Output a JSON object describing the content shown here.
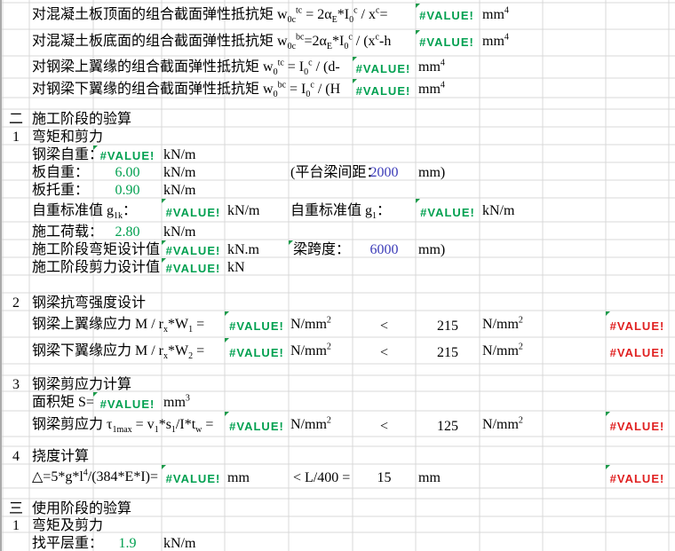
{
  "colors": {
    "error_green": "#00a050",
    "error_red": "#e02020",
    "input_blue": "#3a3ab8",
    "gridline": "#d8d8d8"
  },
  "sheet": {
    "moduli": {
      "top_concrete": {
        "label": [
          [
            "对混凝土板顶面的组合截面弹性抵抗矩 w"
          ],
          [
            "0c",
            "s"
          ],
          [
            "tc",
            "p"
          ],
          [
            " = 2α"
          ],
          [
            "E",
            "s"
          ],
          [
            "*I"
          ],
          [
            "0",
            "s"
          ],
          [
            "c",
            "p"
          ],
          [
            " / x"
          ],
          [
            "c",
            "p"
          ],
          [
            "="
          ]
        ],
        "value": "#VALUE!",
        "unit": [
          [
            "mm"
          ],
          [
            "4",
            "p"
          ]
        ]
      },
      "bottom_concrete": {
        "label": [
          [
            "对混凝土板底面的组合截面弹性抵抗矩 w"
          ],
          [
            "0c",
            "s"
          ],
          [
            "bc",
            "p"
          ],
          [
            "=2α"
          ],
          [
            "E",
            "s"
          ],
          [
            "*I"
          ],
          [
            "0",
            "s"
          ],
          [
            "c",
            "p"
          ],
          [
            " / (x"
          ],
          [
            "c",
            "p"
          ],
          [
            "-h"
          ]
        ],
        "value": "#VALUE!",
        "unit": [
          [
            "mm"
          ],
          [
            "4",
            "p"
          ]
        ]
      },
      "top_flange": {
        "label": [
          [
            "对钢梁上翼缘的组合截面弹性抵抗矩 w"
          ],
          [
            "0",
            "s"
          ],
          [
            "tc",
            "p"
          ],
          [
            " = I"
          ],
          [
            "0",
            "s"
          ],
          [
            "c",
            "p"
          ],
          [
            " / (d-"
          ]
        ],
        "value": "#VALUE!",
        "unit": [
          [
            "mm"
          ],
          [
            "4",
            "p"
          ]
        ]
      },
      "bottom_flange": {
        "label": [
          [
            "对钢梁下翼缘的组合截面弹性抵抗矩 w"
          ],
          [
            "0",
            "s"
          ],
          [
            "bc",
            "p"
          ],
          [
            " = I"
          ],
          [
            "0",
            "s"
          ],
          [
            "c",
            "p"
          ],
          [
            " / (H"
          ]
        ],
        "value": "#VALUE!",
        "unit": [
          [
            "mm"
          ],
          [
            "4",
            "p"
          ]
        ]
      }
    },
    "construction": {
      "section_no": "二",
      "section_title": "施工阶段的验算",
      "item1_no": "1",
      "item1_title": "弯矩和剪力",
      "steel_self_weight": {
        "label": "钢梁自重：",
        "value": "#VALUE!",
        "unit": "kN/m"
      },
      "slab_weight": {
        "label": "板自重：",
        "value": "6.00",
        "unit": "kN/m"
      },
      "platform_spacing": {
        "label": "(平台梁间距：",
        "value": "2000",
        "unit": "mm)"
      },
      "haunch_weight": {
        "label": "板托重：",
        "value": "0.90",
        "unit": "kN/m"
      },
      "g1k": {
        "label": [
          [
            "自重标准值 g"
          ],
          [
            "1k",
            "s"
          ],
          [
            "："
          ]
        ],
        "value": "#VALUE!",
        "unit": "kN/m"
      },
      "g1": {
        "label": [
          [
            "自重标准值 g"
          ],
          [
            "1",
            "s"
          ],
          [
            "："
          ]
        ],
        "value": "#VALUE!",
        "unit": "kN/m"
      },
      "construction_load": {
        "label": "施工荷载：",
        "value": "2.80",
        "unit": "kN/m"
      },
      "moment_design": {
        "label": "施工阶段弯矩设计值",
        "value": "#VALUE!",
        "unit": "kN.m"
      },
      "beam_span": {
        "label": "梁跨度：",
        "value": "6000",
        "unit": "mm)"
      },
      "shear_design": {
        "label": "施工阶段剪力设计值",
        "value": "#VALUE!",
        "unit": "kN"
      },
      "item2_no": "2",
      "item2_title": "钢梁抗弯强度设计",
      "top_flange_stress": {
        "label": [
          [
            "钢梁上翼缘应力 M / r"
          ],
          [
            "x",
            "s"
          ],
          [
            "*W"
          ],
          [
            "1",
            "s"
          ],
          [
            " ="
          ]
        ],
        "value": "#VALUE!",
        "unit": [
          [
            "N/mm"
          ],
          [
            "2",
            "p"
          ]
        ],
        "comparator": "<",
        "limit": "215",
        "limit_unit": [
          [
            "N/mm"
          ],
          [
            "2",
            "p"
          ]
        ],
        "check": "#VALUE!"
      },
      "bottom_flange_stress": {
        "label": [
          [
            "钢梁下翼缘应力 M / r"
          ],
          [
            "x",
            "s"
          ],
          [
            "*W"
          ],
          [
            "2",
            "s"
          ],
          [
            " ="
          ]
        ],
        "value": "#VALUE!",
        "unit": [
          [
            "N/mm"
          ],
          [
            "2",
            "p"
          ]
        ],
        "comparator": "<",
        "limit": "215",
        "limit_unit": [
          [
            "N/mm"
          ],
          [
            "2",
            "p"
          ]
        ],
        "check": "#VALUE!"
      },
      "item3_no": "3",
      "item3_title": "钢梁剪应力计算",
      "area_moment": {
        "label": "面积矩 S=",
        "value": "#VALUE!",
        "unit": [
          [
            "mm"
          ],
          [
            "3",
            "p"
          ]
        ]
      },
      "shear_stress": {
        "label": [
          [
            "钢梁剪应力 τ"
          ],
          [
            "1max",
            "s"
          ],
          [
            " = v"
          ],
          [
            "1",
            "s"
          ],
          [
            "*s"
          ],
          [
            "1",
            "s"
          ],
          [
            "/I*t"
          ],
          [
            "w",
            "s"
          ],
          [
            " ="
          ]
        ],
        "value": "#VALUE!",
        "unit": [
          [
            "N/mm"
          ],
          [
            "2",
            "p"
          ]
        ],
        "comparator": "<",
        "limit": "125",
        "limit_unit": [
          [
            "N/mm"
          ],
          [
            "2",
            "p"
          ]
        ],
        "check": "#VALUE!"
      },
      "item4_no": "4",
      "item4_title": "挠度计算",
      "deflection": {
        "label": [
          [
            "△=5*g*l"
          ],
          [
            "4",
            "p"
          ],
          [
            "/(384*E*I)="
          ]
        ],
        "value": "#VALUE!",
        "unit": "mm",
        "comparator": "< L/400 =",
        "limit": "15",
        "limit_unit": "mm",
        "check": "#VALUE!"
      }
    },
    "service": {
      "section_no": "三",
      "section_title": "使用阶段的验算",
      "item1_no": "1",
      "item1_title": "弯矩及剪力",
      "leveling_weight": {
        "label": "找平层重：",
        "value": "1.9",
        "unit": "kN/m"
      }
    }
  }
}
